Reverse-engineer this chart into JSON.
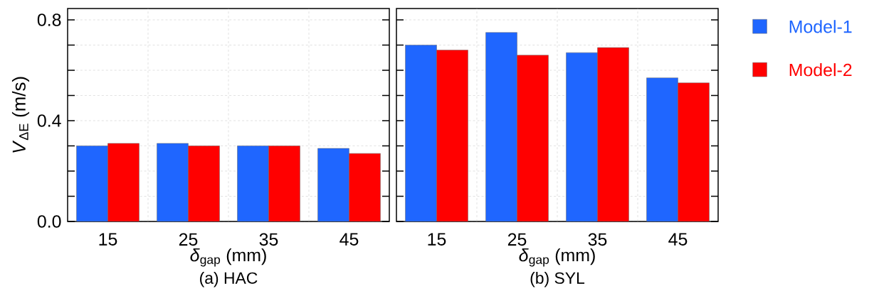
{
  "chart_data": [
    {
      "type": "bar",
      "title": "(a) HAC",
      "xlabel": "*δ*$_{gap}$ (mm)",
      "ylabel": "*V*$_{ΔE}$ (m/s)",
      "categories": [
        "15",
        "25",
        "35",
        "45"
      ],
      "series": [
        {
          "color": "#1f66ff",
          "values": [
            0.3,
            0.31,
            0.3,
            0.29
          ]
        },
        {
          "color": "#ff0000",
          "values": [
            0.31,
            0.3,
            0.3,
            0.27
          ]
        }
      ],
      "ylim": [
        0,
        0.845
      ],
      "yticks": [
        {
          "value": 0,
          "label": "0.0"
        },
        {
          "value": 0.1,
          "label": null
        },
        {
          "value": 0.2,
          "label": null
        },
        {
          "value": 0.3,
          "label": null
        },
        {
          "value": 0.4,
          "label": "0.4"
        },
        {
          "value": 0.5,
          "label": null
        },
        {
          "value": 0.6,
          "label": null
        },
        {
          "value": 0.7,
          "label": null
        },
        {
          "value": 0.8,
          "label": "0.8"
        }
      ],
      "grid": true,
      "legend": false
    },
    {
      "type": "bar",
      "title": "(b) SYL",
      "xlabel": "*δ*$_{gap}$ (mm)",
      "categories": [
        "15",
        "25",
        "35",
        "45"
      ],
      "series": [
        {
          "name": "Model-1",
          "color": "#1f66ff",
          "values": [
            0.7,
            0.75,
            0.67,
            0.57
          ]
        },
        {
          "name": "Model-2",
          "color": "#ff0000",
          "values": [
            0.68,
            0.66,
            0.69,
            0.55
          ]
        }
      ],
      "ylim": [
        0,
        0.845
      ],
      "yticks": [
        0,
        0.1,
        0.2,
        0.3,
        0.4,
        0.5,
        0.6,
        0.7,
        0.8
      ],
      "tick_labels": "x",
      "grid": true,
      "legend": "right"
    }
  ]
}
